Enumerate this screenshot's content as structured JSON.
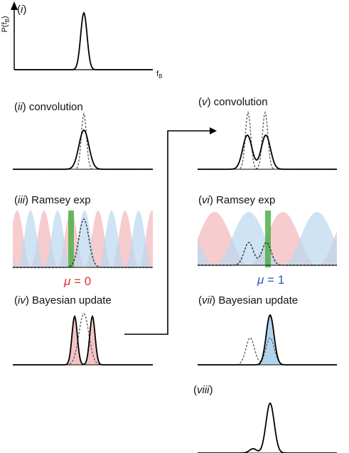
{
  "panels": {
    "i": {
      "label": "i",
      "title": ""
    },
    "ii": {
      "label": "ii",
      "title": "convolution"
    },
    "iii": {
      "label": "iii",
      "title": "Ramsey exp"
    },
    "iv": {
      "label": "iv",
      "title": "Bayesian update"
    },
    "v": {
      "label": "v",
      "title": "convolution"
    },
    "vi": {
      "label": "vi",
      "title": "Ramsey exp"
    },
    "vii": {
      "label": "vii",
      "title": "Bayesian update"
    },
    "viii": {
      "label": "viii",
      "title": ""
    }
  },
  "axes": {
    "y_label": "P(f",
    "y_sub": "B",
    "y_close": ")",
    "x_label": "f",
    "x_sub": "B"
  },
  "outcomes": {
    "left": {
      "symbol": "μ",
      "text": " = 0",
      "color": "#d9343a"
    },
    "right": {
      "symbol": "μ",
      "text": " = 1",
      "color": "#2a5db0"
    }
  },
  "colors": {
    "red_fringe": "#f2b7b9",
    "blue_fringe": "#b9d8ef",
    "green_bar": "#4daf4a",
    "posterior_red": "#f4b8ba",
    "posterior_blue": "#a9cfeb",
    "curve": "#000000",
    "dashed": "#666666"
  },
  "icons": {
    "flow_arrow": "arrow-right-icon"
  }
}
